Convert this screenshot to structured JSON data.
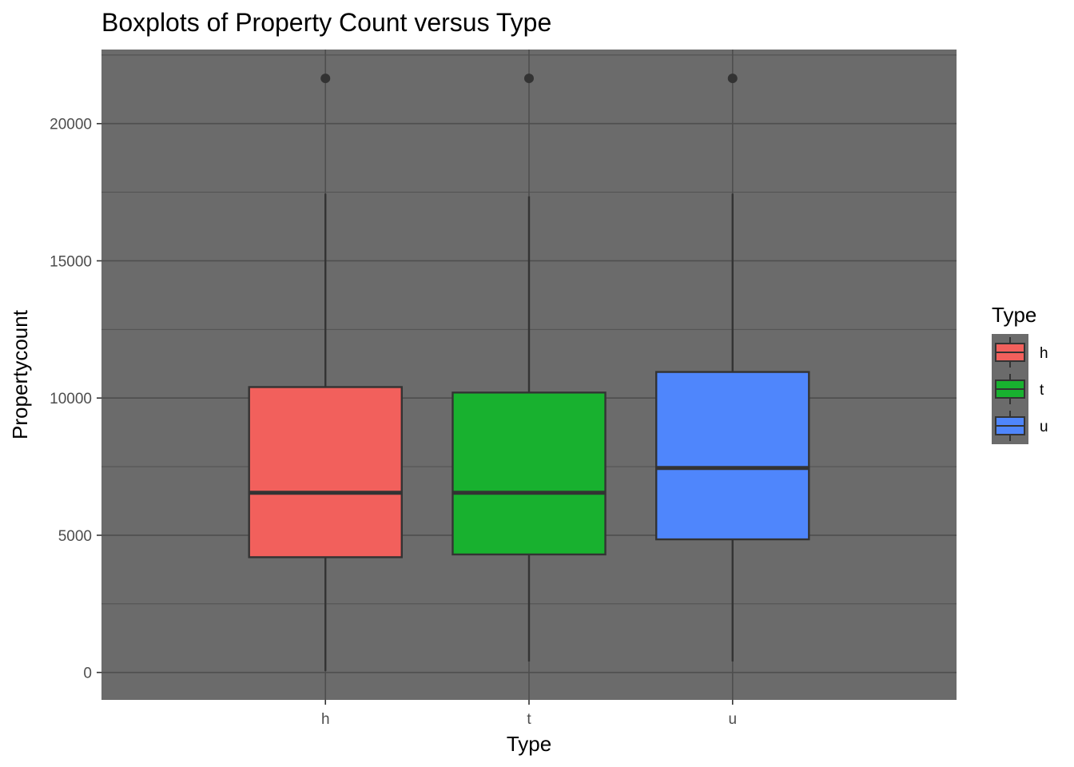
{
  "chart_data": {
    "type": "boxplot",
    "title": "Boxplots of Property Count versus Type",
    "xlabel": "Type",
    "ylabel": "Propertycount",
    "categories": [
      "h",
      "t",
      "u"
    ],
    "ylim": [
      -1000,
      22700
    ],
    "yticks": [
      0,
      5000,
      10000,
      15000,
      20000
    ],
    "ytick_labels": [
      "0",
      "5000",
      "10000",
      "15000",
      "20000"
    ],
    "grid": true,
    "panel_background": "#6b6b6b",
    "legend": {
      "title": "Type",
      "placement": "right",
      "entries": [
        "h",
        "t",
        "u"
      ]
    },
    "series": [
      {
        "category": "h",
        "color": "#f2605c",
        "min": 50,
        "q1": 4200,
        "median": 6550,
        "q3": 10400,
        "max": 17450,
        "outliers": [
          21650
        ]
      },
      {
        "category": "t",
        "color": "#18b12f",
        "min": 400,
        "q1": 4300,
        "median": 6550,
        "q3": 10200,
        "max": 17350,
        "outliers": [
          21650
        ]
      },
      {
        "category": "u",
        "color": "#4f86fc",
        "min": 400,
        "q1": 4850,
        "median": 7450,
        "q3": 10950,
        "max": 17450,
        "outliers": [
          21650
        ]
      }
    ]
  }
}
